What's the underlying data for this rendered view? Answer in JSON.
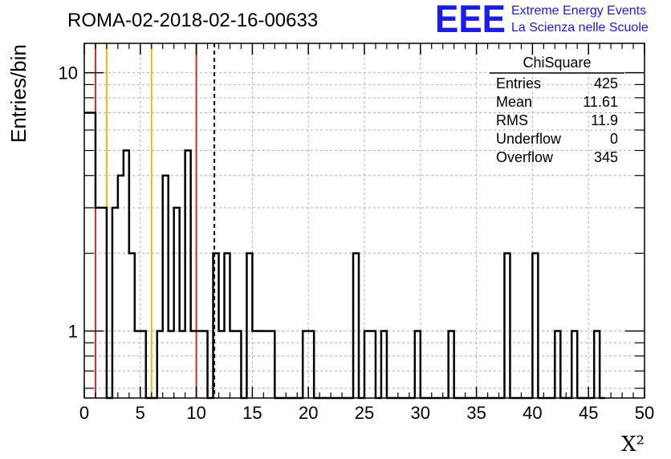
{
  "chart_data": {
    "type": "bar",
    "title": "ROMA-02-2018-02-16-00633",
    "xlabel": "X²",
    "ylabel": "Entries/bin",
    "xlim": [
      0,
      50
    ],
    "ylim": [
      0.55,
      13
    ],
    "y_scale": "log",
    "grid": true,
    "x_ticks": [
      0,
      5,
      10,
      15,
      20,
      25,
      30,
      35,
      40,
      45,
      50
    ],
    "y_ticks": [
      1,
      10
    ],
    "bin_width": 0.5,
    "bins": [
      {
        "x": 0.5,
        "y": 7
      },
      {
        "x": 1.0,
        "y": 3
      },
      {
        "x": 2.0,
        "y": 0
      },
      {
        "x": 2.5,
        "y": 3
      },
      {
        "x": 3.0,
        "y": 4
      },
      {
        "x": 3.5,
        "y": 5
      },
      {
        "x": 4.0,
        "y": 2
      },
      {
        "x": 4.5,
        "y": 1
      },
      {
        "x": 5.5,
        "y": 0
      },
      {
        "x": 6.0,
        "y": 0
      },
      {
        "x": 6.5,
        "y": 1
      },
      {
        "x": 7.0,
        "y": 4
      },
      {
        "x": 7.5,
        "y": 1
      },
      {
        "x": 8.0,
        "y": 3
      },
      {
        "x": 8.5,
        "y": 1
      },
      {
        "x": 9.0,
        "y": 5
      },
      {
        "x": 9.5,
        "y": 1
      },
      {
        "x": 11.0,
        "y": 0
      },
      {
        "x": 11.5,
        "y": 2
      },
      {
        "x": 12.0,
        "y": 1
      },
      {
        "x": 12.5,
        "y": 2
      },
      {
        "x": 13.0,
        "y": 1
      },
      {
        "x": 14.0,
        "y": 0
      },
      {
        "x": 14.5,
        "y": 2
      },
      {
        "x": 15.0,
        "y": 1
      },
      {
        "x": 17.0,
        "y": 0
      },
      {
        "x": 19.5,
        "y": 1
      },
      {
        "x": 20.5,
        "y": 0
      },
      {
        "x": 24.0,
        "y": 2
      },
      {
        "x": 24.5,
        "y": 0
      },
      {
        "x": 25.0,
        "y": 1
      },
      {
        "x": 26.0,
        "y": 0
      },
      {
        "x": 26.5,
        "y": 1
      },
      {
        "x": 27.0,
        "y": 0
      },
      {
        "x": 29.5,
        "y": 1
      },
      {
        "x": 30.0,
        "y": 0
      },
      {
        "x": 32.5,
        "y": 1
      },
      {
        "x": 33.0,
        "y": 0
      },
      {
        "x": 37.5,
        "y": 2
      },
      {
        "x": 38.0,
        "y": 0
      },
      {
        "x": 40.0,
        "y": 2
      },
      {
        "x": 40.5,
        "y": 0
      },
      {
        "x": 42.0,
        "y": 1
      },
      {
        "x": 42.5,
        "y": 0
      },
      {
        "x": 43.5,
        "y": 1
      },
      {
        "x": 44.0,
        "y": 0
      },
      {
        "x": 45.5,
        "y": 1
      },
      {
        "x": 46.0,
        "y": 0
      }
    ],
    "vertical_lines": [
      {
        "x": 1,
        "color": "#e3261f"
      },
      {
        "x": 2,
        "color": "#f5b700"
      },
      {
        "x": 6,
        "color": "#f5b700"
      },
      {
        "x": 10,
        "color": "#e3261f"
      },
      {
        "x": 11.61,
        "color": "#000000",
        "dashed": true
      }
    ],
    "stats": {
      "title": "ChiSquare",
      "rows": [
        {
          "label": "Entries",
          "value": "425"
        },
        {
          "label": "Mean",
          "value": "11.61"
        },
        {
          "label": "RMS",
          "value": "11.9"
        },
        {
          "label": "Underflow",
          "value": "0"
        },
        {
          "label": "Overflow",
          "value": "345"
        }
      ]
    }
  },
  "branding": {
    "logo_text": "EEE",
    "line1": "Extreme Energy Events",
    "line2": "La Scienza nelle Scuole",
    "color": "#1a1aff"
  }
}
